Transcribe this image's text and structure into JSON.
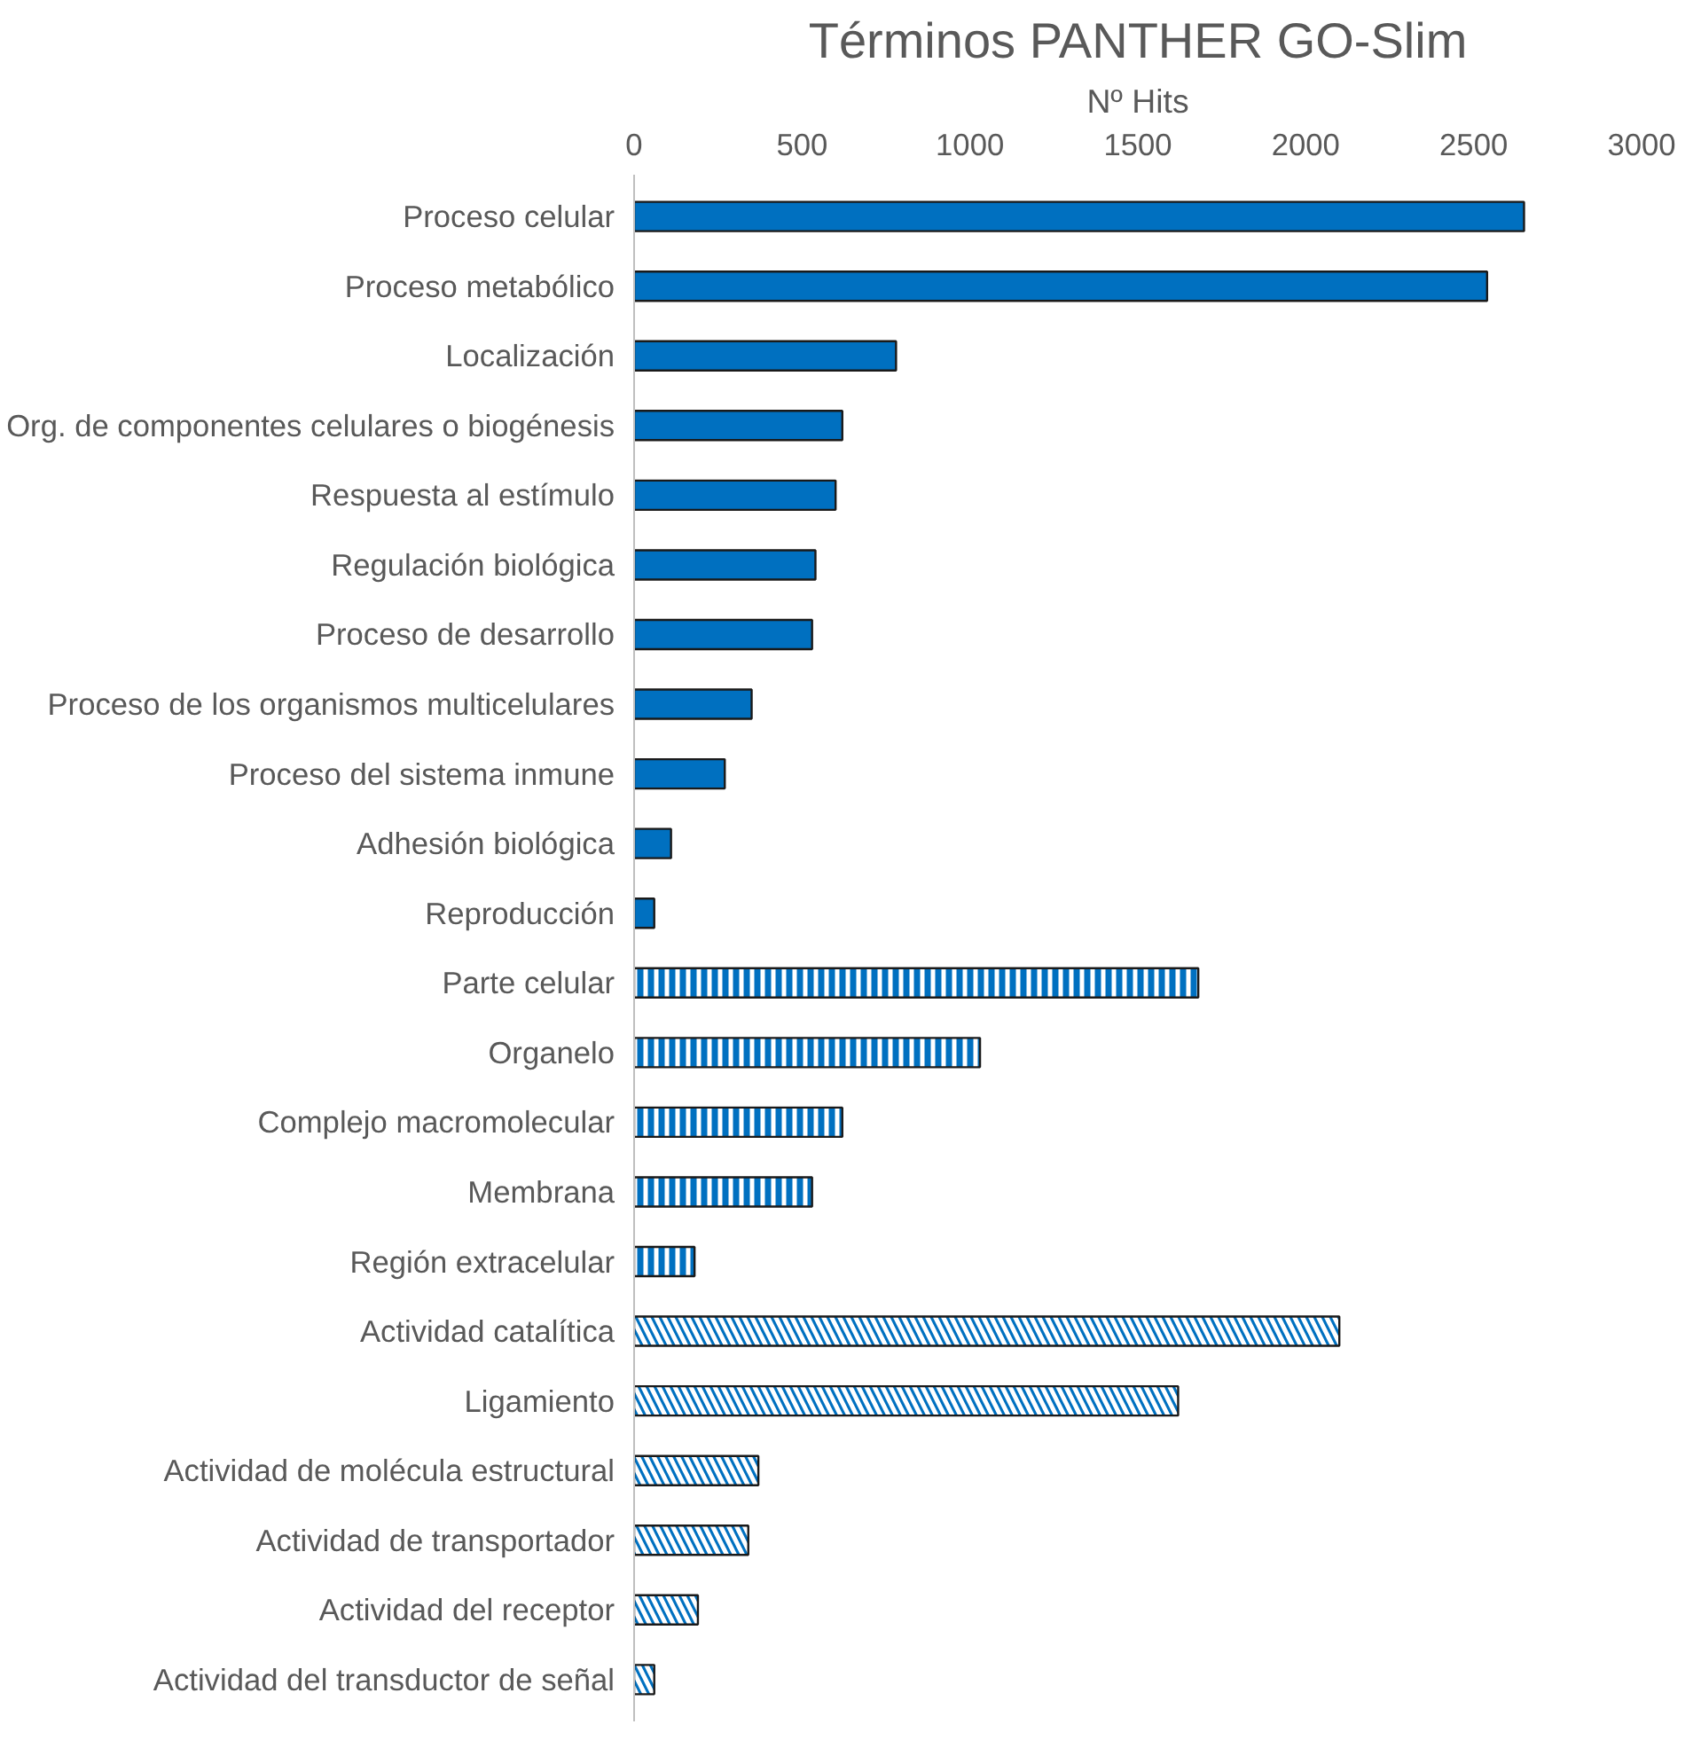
{
  "chart_data": {
    "type": "bar",
    "orientation": "horizontal",
    "title": "Términos PANTHER GO-Slim",
    "xlabel": "Nº Hits",
    "categories": [
      "Proceso celular",
      "Proceso metabólico",
      "Localización",
      "Org. de componentes celulares o biogénesis",
      "Respuesta al estímulo",
      "Regulación biológica",
      "Proceso de desarrollo",
      "Proceso de los organismos multicelulares",
      "Proceso del sistema inmune",
      "Adhesión biológica",
      "Reproducción",
      "Parte celular",
      "Organelo",
      "Complejo macromolecular",
      "Membrana",
      "Región extracelular",
      "Actividad catalítica",
      "Ligamiento",
      "Actividad de molécula estructural",
      "Actividad de transportador",
      "Actividad del receptor",
      "Actividad del transductor de señal"
    ],
    "series": [
      {
        "color": "#0070c0",
        "values": [
          2650,
          2540,
          780,
          620,
          600,
          540,
          530,
          350,
          270,
          110,
          60,
          null,
          null,
          null,
          null,
          null,
          null,
          null,
          null,
          null,
          null,
          null
        ]
      },
      {
        "color": "#0070c0",
        "values": [
          null,
          null,
          null,
          null,
          null,
          null,
          null,
          null,
          null,
          null,
          null,
          1680,
          1030,
          620,
          530,
          180,
          null,
          null,
          null,
          null,
          null,
          null
        ]
      },
      {
        "color": "#0070c0",
        "values": [
          null,
          null,
          null,
          null,
          null,
          null,
          null,
          null,
          null,
          null,
          null,
          null,
          null,
          null,
          null,
          null,
          2100,
          1620,
          370,
          340,
          190,
          60
        ]
      }
    ],
    "xlim": [
      0,
      3000
    ],
    "xticks": [
      0,
      500,
      1000,
      1500,
      2000,
      2500,
      3000
    ],
    "grid": false
  }
}
